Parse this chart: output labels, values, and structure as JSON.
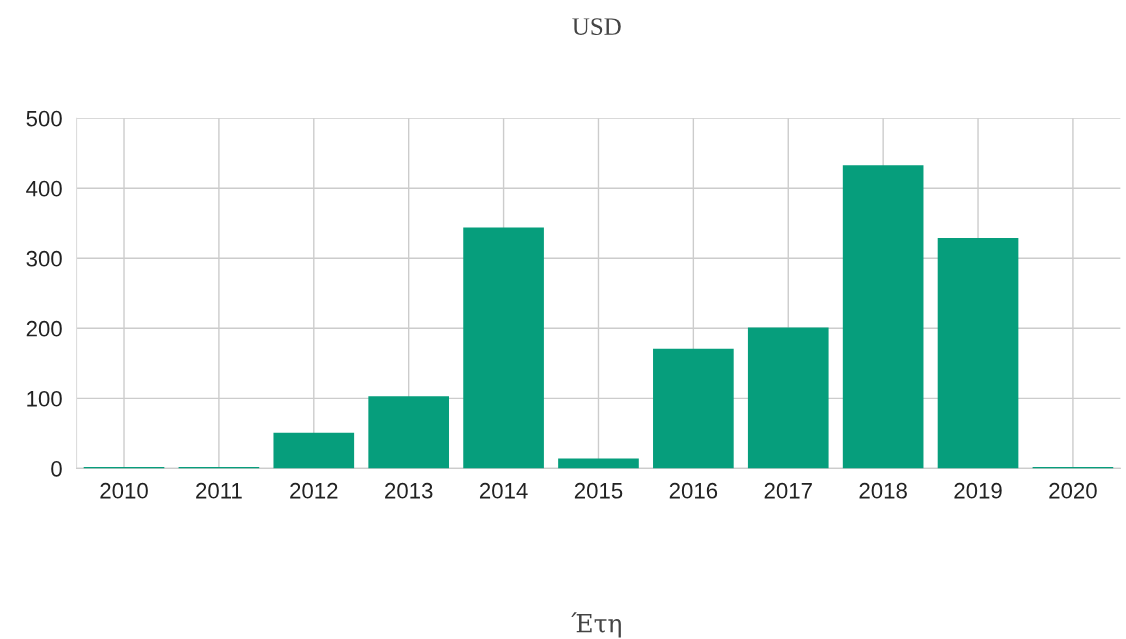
{
  "chart_data": {
    "type": "bar",
    "title": "USD",
    "xlabel": "Έτη",
    "categories": [
      "2010",
      "2011",
      "2012",
      "2013",
      "2014",
      "2015",
      "2016",
      "2017",
      "2018",
      "2019",
      "2020"
    ],
    "values": [
      2,
      2,
      51,
      103,
      344,
      14,
      171,
      201,
      433,
      329,
      2
    ],
    "color": "#069e7c",
    "ylim": [
      0,
      500
    ],
    "yticks": [
      0,
      100,
      200,
      300,
      400,
      500
    ],
    "grid": true
  }
}
